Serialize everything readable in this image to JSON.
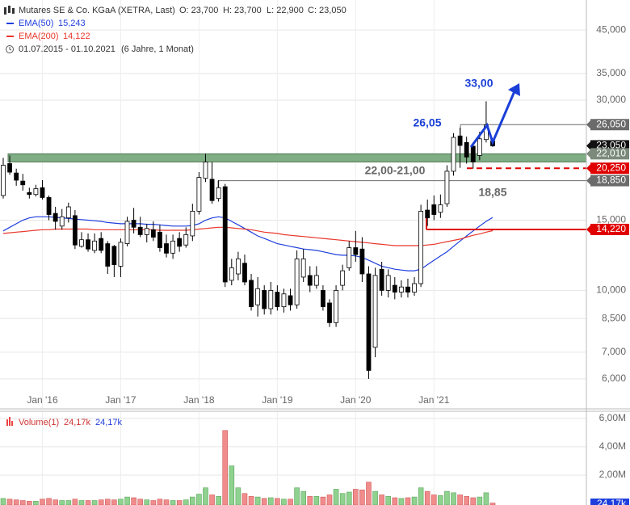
{
  "chart_data": {
    "type": "candlestick",
    "header": {
      "title": "Mutares SE & Co. KGaA (XETRA, Last)",
      "ohlc": [
        "O: 23,700",
        "H: 23,700",
        "L: 22,900",
        "C: 23,050"
      ],
      "range": "01.07.2015 - 01.10.2021",
      "duration": "(6 Jahre, 1 Monat)"
    },
    "categories": [
      null,
      null,
      null,
      null,
      null,
      null,
      "Jan '16",
      null,
      null,
      null,
      null,
      null,
      null,
      null,
      null,
      null,
      null,
      null,
      "Jan '17",
      null,
      null,
      null,
      null,
      null,
      null,
      null,
      null,
      null,
      null,
      null,
      "Jan '18",
      null,
      null,
      null,
      null,
      null,
      null,
      null,
      null,
      null,
      null,
      null,
      "Jan '19",
      null,
      null,
      null,
      null,
      null,
      null,
      null,
      null,
      null,
      null,
      null,
      "Jan '20",
      null,
      null,
      null,
      null,
      null,
      null,
      null,
      null,
      null,
      null,
      null,
      "Jan '21",
      null,
      null,
      null,
      null,
      null,
      null,
      null,
      null,
      null
    ],
    "open": [
      17300,
      20800,
      19700,
      18800,
      17600,
      17400,
      18100,
      17100,
      15600,
      14500,
      15200,
      15400,
      12900,
      13400,
      12600,
      13500,
      13100,
      12900,
      11500,
      13100,
      15000,
      14400,
      13800,
      14200,
      14000,
      13100,
      12400,
      13500,
      13000,
      13700,
      15800,
      19100,
      19000,
      17000,
      18200,
      10600,
      11000,
      11700,
      10600,
      9200,
      10000,
      9000,
      9900,
      9100,
      9700,
      9200,
      10800,
      10900,
      10300,
      10000,
      9300,
      8300,
      10300,
      11400,
      12800,
      12700,
      11000,
      7200,
      11300,
      10000,
      10300,
      9900,
      10200,
      9900,
      10400,
      15900,
      16400,
      15700,
      16500,
      19900,
      24400,
      23500,
      23000,
      21800,
      23900,
      23700
    ],
    "high": [
      21500,
      21800,
      20200,
      19600,
      18100,
      18400,
      18900,
      17300,
      16200,
      16000,
      16600,
      15900,
      14000,
      13900,
      13900,
      14000,
      13300,
      13000,
      13500,
      15300,
      16100,
      15300,
      14700,
      14900,
      14600,
      13800,
      13800,
      14000,
      14400,
      16500,
      19800,
      22000,
      21000,
      18900,
      18500,
      12000,
      12500,
      12300,
      11000,
      10800,
      10300,
      10500,
      10300,
      10100,
      10100,
      12600,
      12700,
      11500,
      11500,
      10300,
      9500,
      10300,
      11600,
      13300,
      14100,
      13600,
      11500,
      11400,
      11800,
      11300,
      10800,
      10600,
      10700,
      10800,
      16400,
      16900,
      17300,
      17400,
      20600,
      24800,
      25600,
      24300,
      23500,
      25000,
      29800,
      23700
    ],
    "low": [
      17000,
      19500,
      18300,
      17800,
      17000,
      17200,
      16900,
      15000,
      14200,
      14200,
      14800,
      12700,
      12800,
      12500,
      12400,
      12400,
      11000,
      10800,
      10800,
      12900,
      13900,
      13600,
      13200,
      13300,
      12500,
      12100,
      12000,
      12500,
      12800,
      13300,
      15500,
      18700,
      16500,
      16700,
      10200,
      10300,
      10600,
      10300,
      8900,
      8600,
      8700,
      8700,
      8900,
      8800,
      8900,
      9000,
      10500,
      9900,
      10100,
      8900,
      8100,
      8100,
      10000,
      11200,
      11800,
      10500,
      6000,
      6800,
      9700,
      9600,
      9500,
      9600,
      9600,
      9700,
      10200,
      14500,
      15000,
      15200,
      16200,
      19400,
      20300,
      20800,
      20200,
      21200,
      23500,
      22900
    ],
    "close": [
      20600,
      19800,
      18900,
      18400,
      17400,
      18000,
      17100,
      15500,
      14900,
      15300,
      16200,
      13000,
      13400,
      12700,
      13300,
      12600,
      11500,
      11600,
      13200,
      14900,
      14400,
      13800,
      14300,
      13600,
      12800,
      12400,
      13300,
      12900,
      13800,
      15800,
      19200,
      21000,
      16800,
      18100,
      10500,
      11400,
      12000,
      10500,
      9100,
      10100,
      9000,
      10000,
      9100,
      9800,
      9200,
      12000,
      12000,
      10300,
      10900,
      9100,
      8300,
      10000,
      11200,
      12800,
      12300,
      11000,
      6300,
      10900,
      10000,
      10900,
      9900,
      10200,
      9900,
      10400,
      15800,
      15200,
      15500,
      16400,
      19900,
      24200,
      23100,
      21600,
      21000,
      24000,
      26000,
      23050
    ],
    "ema": [
      {
        "name": "EMA(50)",
        "legend_label": "15,243",
        "color": "#1f3fdc",
        "values": [
          14100,
          14400,
          14700,
          15000,
          15200,
          15300,
          15300,
          15300,
          15250,
          15200,
          15150,
          15100,
          15050,
          15000,
          14950,
          14900,
          14800,
          14750,
          14700,
          14700,
          14700,
          14700,
          14650,
          14650,
          14600,
          14550,
          14500,
          14500,
          14500,
          14550,
          14700,
          15000,
          15200,
          15300,
          15200,
          14900,
          14600,
          14300,
          14000,
          13700,
          13500,
          13300,
          13100,
          13000,
          12900,
          12800,
          12700,
          12650,
          12600,
          12500,
          12400,
          12300,
          12250,
          12250,
          12200,
          12100,
          11900,
          11700,
          11500,
          11400,
          11300,
          11250,
          11200,
          11200,
          11300,
          11600,
          11900,
          12200,
          12500,
          12900,
          13300,
          13700,
          14100,
          14500,
          14900,
          15243
        ]
      },
      {
        "name": "EMA(200)",
        "legend_label": "14,122",
        "color": "#e8372b",
        "values": [
          13900,
          13950,
          14000,
          14050,
          14100,
          14150,
          14200,
          14200,
          14250,
          14250,
          14250,
          14250,
          14250,
          14250,
          14200,
          14200,
          14200,
          14200,
          14200,
          14200,
          14200,
          14200,
          14200,
          14200,
          14150,
          14150,
          14150,
          14150,
          14150,
          14200,
          14250,
          14300,
          14350,
          14400,
          14400,
          14350,
          14300,
          14250,
          14200,
          14100,
          14000,
          13950,
          13900,
          13800,
          13750,
          13700,
          13650,
          13600,
          13550,
          13500,
          13450,
          13400,
          13350,
          13300,
          13250,
          13200,
          13150,
          13100,
          13050,
          13000,
          12950,
          12950,
          12950,
          12950,
          12950,
          13000,
          13050,
          13150,
          13250,
          13350,
          13450,
          13600,
          13750,
          13850,
          14000,
          14122
        ]
      }
    ],
    "log_scale": true,
    "grid": true,
    "ylim": [
      5070,
      53500
    ],
    "yticks": [
      {
        "value": 6000,
        "label": "6,000"
      },
      {
        "value": 7000,
        "label": "7,000"
      },
      {
        "value": 8500,
        "label": "8,500"
      },
      {
        "value": 10000,
        "label": "10,000"
      },
      {
        "value": 15000,
        "label": "15,000"
      },
      {
        "value": 30000,
        "label": "30,000"
      },
      {
        "value": 35000,
        "label": "35,000"
      },
      {
        "value": 45000,
        "label": "45,000"
      }
    ],
    "zone": {
      "high": 22010,
      "low": 21000,
      "color": "#7fae85"
    },
    "levels": [
      {
        "value": 26050,
        "label": "26,050",
        "color": "#6b6b6b",
        "line": "solid"
      },
      {
        "value": 23050,
        "label": "23,050",
        "color": "#111111",
        "line": "none"
      },
      {
        "value": 22010,
        "label": "22,010",
        "color": "#7b8a7b",
        "line": "none"
      },
      {
        "value": 20250,
        "label": "20,250",
        "color": "#e00000",
        "line": "dashed"
      },
      {
        "value": 18850,
        "label": "18,850",
        "color": "#6b6b6b",
        "line": "solid"
      },
      {
        "value": 14220,
        "label": "14,220",
        "color": "#e00000",
        "line": "thick"
      }
    ],
    "annotations": [
      {
        "text": "33,00",
        "color": "#1a3fd6"
      },
      {
        "text": "26,05",
        "color": "#1a3fd6"
      },
      {
        "text": "22,00-21,00",
        "color": "#666666"
      },
      {
        "text": "18,85",
        "color": "#666666"
      }
    ],
    "volume": {
      "name": "Volume(1)",
      "legend_values": [
        "24,17k",
        "24,17k"
      ],
      "tag": "24,17k",
      "values": [
        0.35,
        0.3,
        0.25,
        0.2,
        0.15,
        0.15,
        0.3,
        0.35,
        0.25,
        0.2,
        0.2,
        0.3,
        0.2,
        0.2,
        0.2,
        0.25,
        0.3,
        0.25,
        0.3,
        0.45,
        0.4,
        0.3,
        0.25,
        0.2,
        0.3,
        0.25,
        0.2,
        0.2,
        0.25,
        0.45,
        0.65,
        1.1,
        0.6,
        0.5,
        5.15,
        2.65,
        1.1,
        0.7,
        0.5,
        0.45,
        0.35,
        0.4,
        0.35,
        0.3,
        0.3,
        1.1,
        0.85,
        0.5,
        0.5,
        0.45,
        0.6,
        1.0,
        0.7,
        0.8,
        1.0,
        0.95,
        1.5,
        0.85,
        0.6,
        0.5,
        0.4,
        0.35,
        0.4,
        0.45,
        1.1,
        0.85,
        0.6,
        0.55,
        0.85,
        0.75,
        0.6,
        0.5,
        0.4,
        0.45,
        0.75,
        0.02417
      ],
      "up_color": "#8fd18f",
      "down_color": "#f08c8c",
      "ylim": [
        0,
        6.45
      ],
      "yticks": [
        {
          "value": 2,
          "label": "2,00M"
        },
        {
          "value": 4,
          "label": "4,00M"
        },
        {
          "value": 6,
          "label": "6,00M"
        }
      ]
    }
  }
}
